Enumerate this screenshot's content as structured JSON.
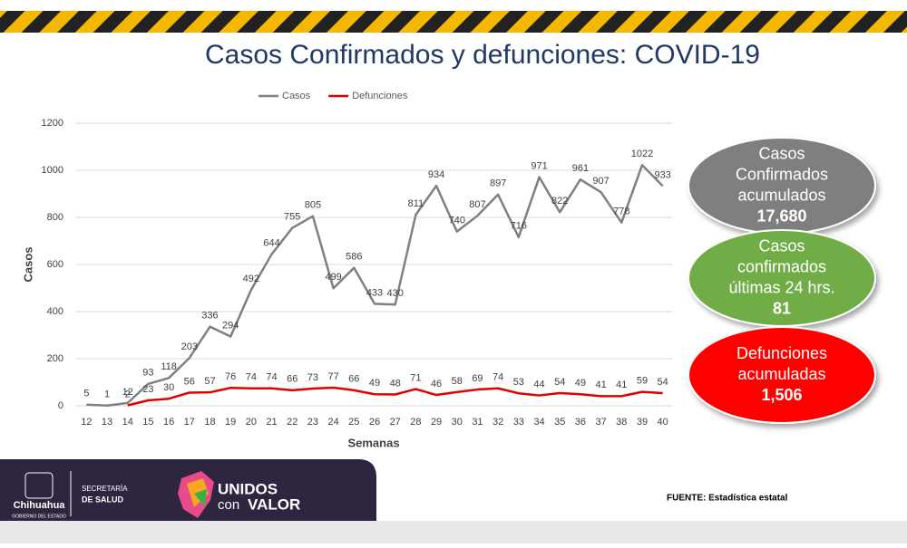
{
  "chart_data": {
    "type": "line",
    "title": "Casos Confirmados y defunciones: COVID-19",
    "x_label": "Semanas",
    "y_label": "Casos",
    "categories": [
      "12",
      "13",
      "14",
      "15",
      "16",
      "17",
      "18",
      "19",
      "20",
      "21",
      "22",
      "23",
      "24",
      "25",
      "26",
      "27",
      "28",
      "29",
      "30",
      "31",
      "32",
      "33",
      "34",
      "35",
      "36",
      "37",
      "38",
      "39",
      "40"
    ],
    "series": [
      {
        "name": "Casos",
        "color": "#808080",
        "values": [
          5,
          1,
          12,
          93,
          118,
          203,
          336,
          294,
          492,
          644,
          755,
          805,
          499,
          586,
          433,
          430,
          811,
          934,
          740,
          807,
          897,
          716,
          971,
          822,
          961,
          907,
          778,
          1022,
          933
        ]
      },
      {
        "name": "Defunciones",
        "color": "#e00000",
        "values": [
          null,
          null,
          2,
          23,
          30,
          56,
          57,
          76,
          74,
          74,
          66,
          73,
          77,
          66,
          49,
          48,
          71,
          46,
          58,
          69,
          74,
          53,
          44,
          54,
          49,
          41,
          41,
          59,
          54
        ]
      }
    ],
    "ylim": [
      0,
      1200
    ],
    "yticks": [
      0,
      200,
      400,
      600,
      800,
      1000,
      1200
    ],
    "grid": true,
    "legend": "top"
  },
  "summary": [
    {
      "label_lines": [
        "Casos",
        "Confirmados",
        "acumulados"
      ],
      "value": "17,680",
      "color": "#7f7f7f"
    },
    {
      "label_lines": [
        "Casos",
        "confirmados",
        "últimas 24 hrs."
      ],
      "value": "81",
      "color": "#70ad47"
    },
    {
      "label_lines": [
        "Defunciones",
        "acumuladas"
      ],
      "value": "1,506",
      "color": "#ff0000"
    }
  ],
  "footer": {
    "state": "Chihuahua",
    "state_sub": "GOBIERNO DEL ESTADO",
    "dept_1": "SECRETARÍA",
    "dept_2": "DE SALUD",
    "slogan_1": "UNIDOS",
    "slogan_2": "con",
    "slogan_3": "VALOR",
    "source": "FUENTE: Estadística  estatal"
  }
}
